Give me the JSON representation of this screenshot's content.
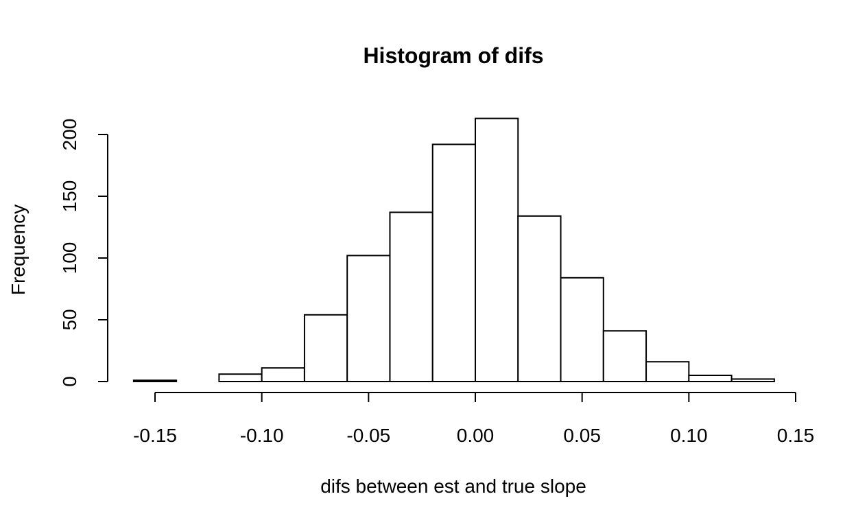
{
  "chart_data": {
    "type": "bar",
    "title": "Histogram of difs",
    "xlabel": "difs between est and true slope",
    "ylabel": "Frequency",
    "bin_edges": [
      -0.16,
      -0.14,
      -0.12,
      -0.1,
      -0.08,
      -0.06,
      -0.04,
      -0.02,
      0.0,
      0.02,
      0.04,
      0.06,
      0.08,
      0.1,
      0.12,
      0.14
    ],
    "values": [
      1,
      0,
      6,
      11,
      54,
      102,
      137,
      192,
      213,
      134,
      84,
      41,
      16,
      5,
      2
    ],
    "xlim": [
      -0.15,
      0.15
    ],
    "ylim": [
      0,
      200
    ],
    "x_ticks": [
      -0.15,
      -0.1,
      -0.05,
      0.0,
      0.05,
      0.1,
      0.15
    ],
    "x_tick_labels": [
      "-0.15",
      "-0.10",
      "-0.05",
      "0.00",
      "0.05",
      "0.10",
      "0.15"
    ],
    "y_ticks": [
      0,
      50,
      100,
      150,
      200
    ],
    "y_tick_labels": [
      "0",
      "50",
      "100",
      "150",
      "200"
    ],
    "grid": false,
    "bar_fill": "#ffffff",
    "bar_stroke": "#000000"
  }
}
